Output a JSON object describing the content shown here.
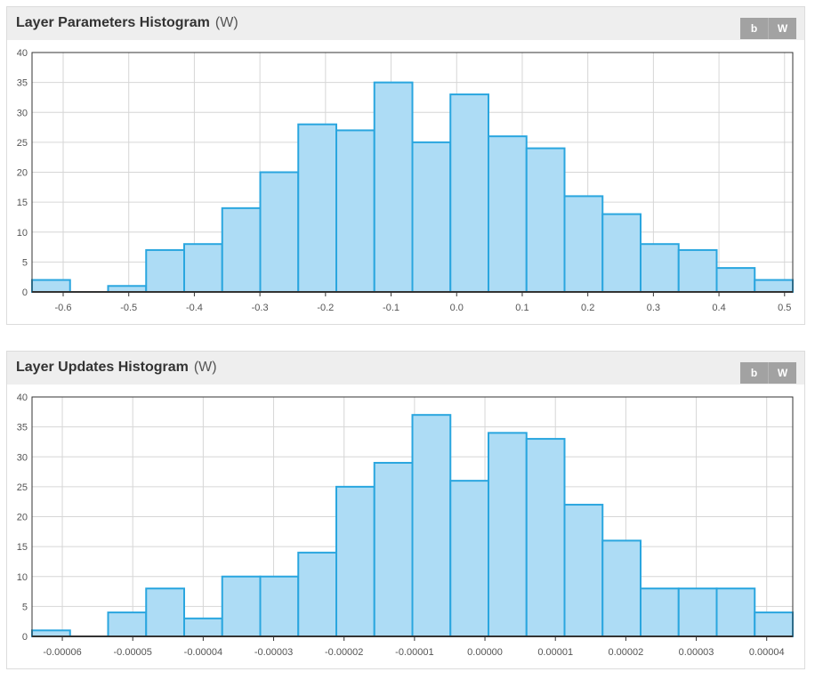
{
  "panels": [
    {
      "title": "Layer Parameters Histogram",
      "subtitle": "(W)",
      "buttons": [
        "b",
        "W"
      ]
    },
    {
      "title": "Layer Updates Histogram",
      "subtitle": "(W)",
      "buttons": [
        "b",
        "W"
      ]
    }
  ],
  "colors": {
    "bar_fill": "#addcf5",
    "bar_stroke": "#2aa6df",
    "grid": "#d6d6d6",
    "axis": "#333333",
    "header_bg": "#eeeeee",
    "button_bg": "#a2a2a2"
  },
  "chart_data": [
    {
      "type": "bar",
      "title": "Layer Parameters Histogram",
      "bin_edges": [
        -0.6475,
        -0.5895,
        -0.5315,
        -0.4735,
        -0.4155,
        -0.3575,
        -0.2995,
        -0.2415,
        -0.1835,
        -0.1255,
        -0.0675,
        -0.0095,
        0.0485,
        0.1065,
        0.1645,
        0.2225,
        0.2805,
        0.3385,
        0.3965,
        0.4545,
        0.5125
      ],
      "values": [
        2,
        0,
        1,
        7,
        8,
        14,
        20,
        28,
        27,
        35,
        25,
        33,
        26,
        24,
        16,
        13,
        8,
        7,
        4,
        2
      ],
      "xlim": [
        -0.6475,
        0.5125
      ],
      "ylim": [
        0,
        40
      ],
      "x_ticks": [
        -0.6,
        -0.5,
        -0.4,
        -0.3,
        -0.2,
        -0.1,
        0.0,
        0.1,
        0.2,
        0.3,
        0.4,
        0.5
      ],
      "x_tick_labels": [
        "-0.6",
        "-0.5",
        "-0.4",
        "-0.3",
        "-0.2",
        "-0.1",
        "0.0",
        "0.1",
        "0.2",
        "0.3",
        "0.4",
        "0.5"
      ],
      "y_ticks": [
        0,
        5,
        10,
        15,
        20,
        25,
        30,
        35,
        40
      ],
      "grid": true
    },
    {
      "type": "bar",
      "title": "Layer Updates Histogram",
      "bin_edges": [
        -6.43e-05,
        -5.89e-05,
        -5.35e-05,
        -4.81e-05,
        -4.27e-05,
        -3.73e-05,
        -3.19e-05,
        -2.65e-05,
        -2.11e-05,
        -1.57e-05,
        -1.03e-05,
        -4.9e-06,
        5e-07,
        5.9e-06,
        1.13e-05,
        1.67e-05,
        2.21e-05,
        2.75e-05,
        3.29e-05,
        3.83e-05,
        4.37e-05
      ],
      "values": [
        1,
        0,
        4,
        8,
        3,
        10,
        10,
        14,
        25,
        29,
        37,
        26,
        34,
        33,
        22,
        16,
        8,
        8,
        8,
        4
      ],
      "xlim": [
        -6.43e-05,
        4.37e-05
      ],
      "ylim": [
        0,
        40
      ],
      "x_ticks": [
        -6e-05,
        -5e-05,
        -4e-05,
        -3e-05,
        -2e-05,
        -1e-05,
        0.0,
        1e-05,
        2e-05,
        3e-05,
        4e-05
      ],
      "x_tick_labels": [
        "-0.00006",
        "-0.00005",
        "-0.00004",
        "-0.00003",
        "-0.00002",
        "-0.00001",
        "0.00000",
        "0.00001",
        "0.00002",
        "0.00003",
        "0.00004"
      ],
      "y_ticks": [
        0,
        5,
        10,
        15,
        20,
        25,
        30,
        35,
        40
      ],
      "grid": true
    }
  ]
}
